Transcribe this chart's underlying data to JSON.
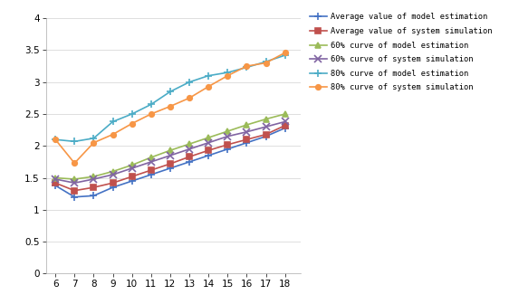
{
  "x": [
    6,
    7,
    8,
    9,
    10,
    11,
    12,
    13,
    14,
    15,
    16,
    17,
    18
  ],
  "avg_model": [
    1.38,
    1.2,
    1.22,
    1.35,
    1.45,
    1.55,
    1.65,
    1.75,
    1.85,
    1.95,
    2.05,
    2.15,
    2.28
  ],
  "avg_sim": [
    1.42,
    1.3,
    1.35,
    1.42,
    1.52,
    1.62,
    1.72,
    1.83,
    1.93,
    2.02,
    2.1,
    2.18,
    2.32
  ],
  "p60_model": [
    1.5,
    1.48,
    1.52,
    1.6,
    1.7,
    1.82,
    1.93,
    2.03,
    2.13,
    2.23,
    2.33,
    2.42,
    2.5
  ],
  "p60_sim": [
    1.48,
    1.42,
    1.48,
    1.55,
    1.65,
    1.75,
    1.85,
    1.95,
    2.05,
    2.15,
    2.22,
    2.3,
    2.38
  ],
  "p80_model": [
    2.1,
    2.07,
    2.12,
    2.38,
    2.5,
    2.65,
    2.85,
    3.0,
    3.1,
    3.15,
    3.23,
    3.32,
    3.42
  ],
  "p80_sim": [
    2.1,
    1.73,
    2.05,
    2.18,
    2.35,
    2.5,
    2.62,
    2.75,
    2.93,
    3.1,
    3.25,
    3.3,
    3.46
  ],
  "colors": {
    "avg_model": "#4472C4",
    "avg_sim": "#C0504D",
    "p60_model": "#9BBB59",
    "p60_sim": "#8064A2",
    "p80_model": "#4BACC6",
    "p80_sim": "#F79646"
  },
  "legend_labels": [
    "Average value of model estimation",
    "Average value of system simulation",
    "60% curve of model estimation",
    "60% curve of system simulation",
    "80% curve of model estimation",
    "80% curve of system simulation"
  ],
  "ylim": [
    0,
    4
  ],
  "yticks": [
    0,
    0.5,
    1,
    1.5,
    2,
    2.5,
    3,
    3.5,
    4
  ],
  "xlim": [
    5.5,
    18.8
  ],
  "xticks": [
    6,
    7,
    8,
    9,
    10,
    11,
    12,
    13,
    14,
    15,
    16,
    17,
    18
  ],
  "bg_color": "#FFFFFF",
  "grid_color": "#D9D9D9"
}
